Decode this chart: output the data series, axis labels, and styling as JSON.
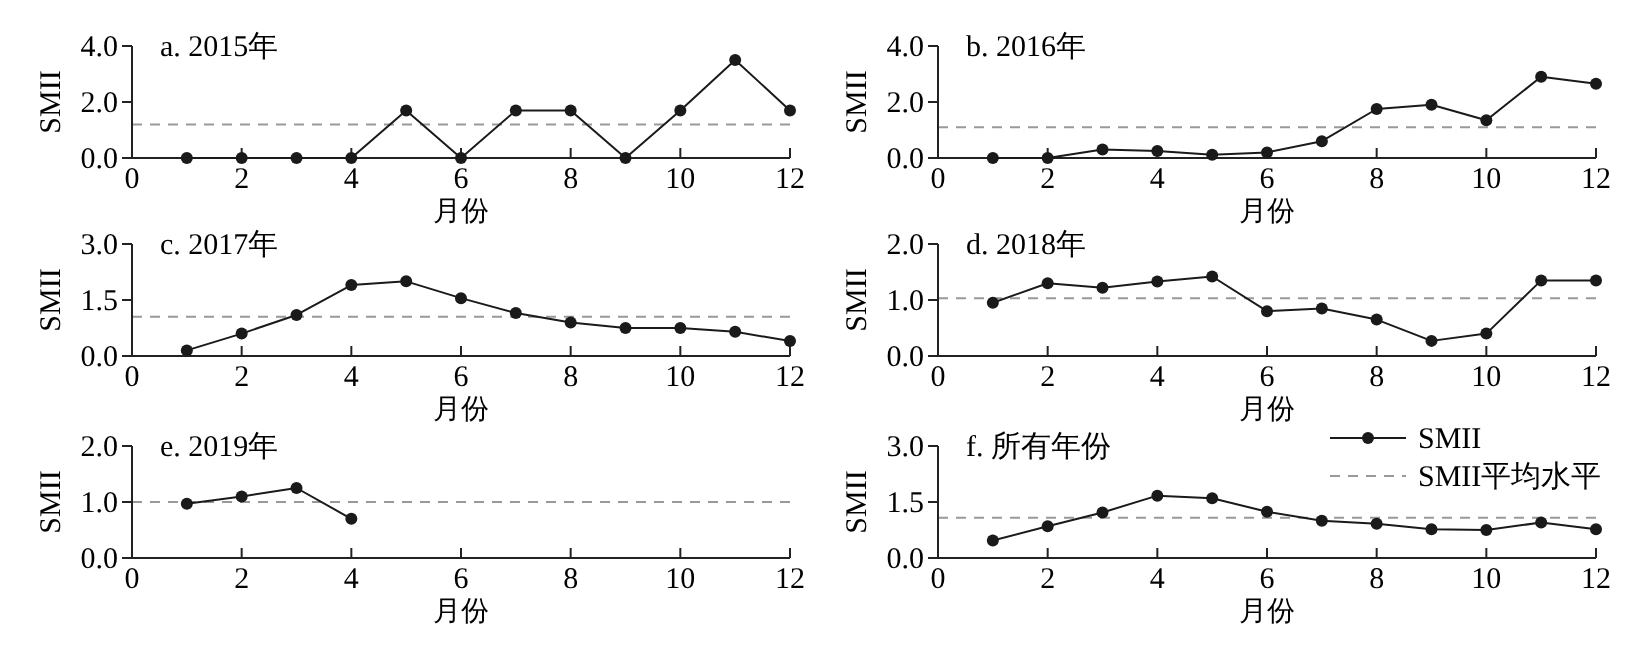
{
  "chart_data": [
    {
      "type": "line",
      "title": "a. 2015年",
      "xlabel": "月份",
      "ylabel": "SMII",
      "x": [
        1,
        2,
        3,
        4,
        5,
        6,
        7,
        8,
        9,
        10,
        11,
        12
      ],
      "marker": "circle",
      "line_style": "solid",
      "xlim": [
        0,
        12
      ],
      "ylim": [
        0,
        4
      ],
      "xticks": [
        0,
        2,
        4,
        6,
        8,
        10,
        12
      ],
      "yticks": [
        {
          "value": 0,
          "label": "0.0"
        },
        {
          "value": 2,
          "label": "2.0"
        },
        {
          "value": 4,
          "label": "4.0"
        }
      ],
      "series": [
        {
          "color": "#1a1a1a",
          "values": [
            0,
            0,
            0,
            0,
            1.7,
            0,
            1.7,
            1.7,
            0,
            1.7,
            3.5,
            1.7
          ]
        }
      ],
      "ref_lines": [
        {
          "axis": "y",
          "value": 1.2,
          "color": "#999999",
          "line_style": "dashed"
        }
      ]
    },
    {
      "type": "line",
      "title": "b. 2016年",
      "xlabel": "月份",
      "ylabel": "SMII",
      "x": [
        1,
        2,
        3,
        4,
        5,
        6,
        7,
        8,
        9,
        10,
        11,
        12
      ],
      "marker": "circle",
      "line_style": "solid",
      "xlim": [
        0,
        12
      ],
      "ylim": [
        0,
        4
      ],
      "xticks": [
        0,
        2,
        4,
        6,
        8,
        10,
        12
      ],
      "yticks": [
        {
          "value": 0,
          "label": "0.0"
        },
        {
          "value": 2,
          "label": "2.0"
        },
        {
          "value": 4,
          "label": "4.0"
        }
      ],
      "series": [
        {
          "color": "#1a1a1a",
          "values": [
            0,
            0,
            0.3,
            0.25,
            0.12,
            0.2,
            0.6,
            1.75,
            1.9,
            1.35,
            2.9,
            2.65
          ]
        }
      ],
      "ref_lines": [
        {
          "axis": "y",
          "value": 1.1,
          "color": "#999999",
          "line_style": "dashed"
        }
      ]
    },
    {
      "type": "line",
      "title": "c. 2017年",
      "xlabel": "月份",
      "ylabel": "SMII",
      "x": [
        1,
        2,
        3,
        4,
        5,
        6,
        7,
        8,
        9,
        10,
        11,
        12
      ],
      "marker": "circle",
      "line_style": "solid",
      "xlim": [
        0,
        12
      ],
      "ylim": [
        0,
        3
      ],
      "xticks": [
        0,
        2,
        4,
        6,
        8,
        10,
        12
      ],
      "yticks": [
        {
          "value": 0,
          "label": "0.0"
        },
        1.5,
        {
          "value": 3,
          "label": "3.0"
        }
      ],
      "series": [
        {
          "color": "#1a1a1a",
          "values": [
            0.15,
            0.6,
            1.1,
            1.9,
            2.0,
            1.55,
            1.15,
            0.9,
            0.75,
            0.75,
            0.65,
            0.4
          ]
        }
      ],
      "ref_lines": [
        {
          "axis": "y",
          "value": 1.05,
          "color": "#999999",
          "line_style": "dashed"
        }
      ]
    },
    {
      "type": "line",
      "title": "d. 2018年",
      "xlabel": "月份",
      "ylabel": "SMII",
      "x": [
        1,
        2,
        3,
        4,
        5,
        6,
        7,
        8,
        9,
        10,
        11,
        12
      ],
      "marker": "circle",
      "line_style": "solid",
      "xlim": [
        0,
        12
      ],
      "ylim": [
        0,
        2
      ],
      "xticks": [
        0,
        2,
        4,
        6,
        8,
        10,
        12
      ],
      "yticks": [
        {
          "value": 0,
          "label": "0.0"
        },
        {
          "value": 1,
          "label": "1.0"
        },
        {
          "value": 2,
          "label": "2.0"
        }
      ],
      "series": [
        {
          "color": "#1a1a1a",
          "values": [
            0.95,
            1.3,
            1.22,
            1.33,
            1.42,
            0.8,
            0.85,
            0.65,
            0.27,
            0.4,
            1.35,
            1.35
          ]
        }
      ],
      "ref_lines": [
        {
          "axis": "y",
          "value": 1.03,
          "color": "#999999",
          "line_style": "dashed"
        }
      ]
    },
    {
      "type": "line",
      "title": "e. 2019年",
      "xlabel": "月份",
      "ylabel": "SMII",
      "x": [
        1,
        2,
        3,
        4
      ],
      "marker": "circle",
      "line_style": "solid",
      "xlim": [
        0,
        12
      ],
      "ylim": [
        0,
        2
      ],
      "xticks": [
        0,
        2,
        4,
        6,
        8,
        10,
        12
      ],
      "yticks": [
        {
          "value": 0,
          "label": "0.0"
        },
        {
          "value": 1,
          "label": "1.0"
        },
        {
          "value": 2,
          "label": "2.0"
        }
      ],
      "series": [
        {
          "color": "#1a1a1a",
          "values": [
            0.97,
            1.1,
            1.25,
            0.7
          ]
        }
      ],
      "ref_lines": [
        {
          "axis": "y",
          "value": 1.0,
          "color": "#999999",
          "line_style": "dashed"
        }
      ]
    },
    {
      "type": "line",
      "title": "f. 所有年份",
      "xlabel": "月份",
      "ylabel": "SMII",
      "x": [
        1,
        2,
        3,
        4,
        5,
        6,
        7,
        8,
        9,
        10,
        11,
        12
      ],
      "marker": "circle",
      "line_style": "solid",
      "legend": "top right",
      "xlim": [
        0,
        12
      ],
      "ylim": [
        0,
        3
      ],
      "xticks": [
        0,
        2,
        4,
        6,
        8,
        10,
        12
      ],
      "yticks": [
        {
          "value": 0,
          "label": "0.0"
        },
        1.5,
        {
          "value": 3,
          "label": "3.0"
        }
      ],
      "series": [
        {
          "name": "SMII",
          "color": "#1a1a1a",
          "values": [
            0.47,
            0.85,
            1.22,
            1.67,
            1.6,
            1.24,
            1.0,
            0.92,
            0.77,
            0.75,
            0.95,
            0.77
          ]
        }
      ],
      "ref_lines": [
        {
          "axis": "y",
          "value": 1.08,
          "color": "#999999",
          "line_style": "dashed",
          "label": "SMII平均水平"
        }
      ]
    }
  ]
}
